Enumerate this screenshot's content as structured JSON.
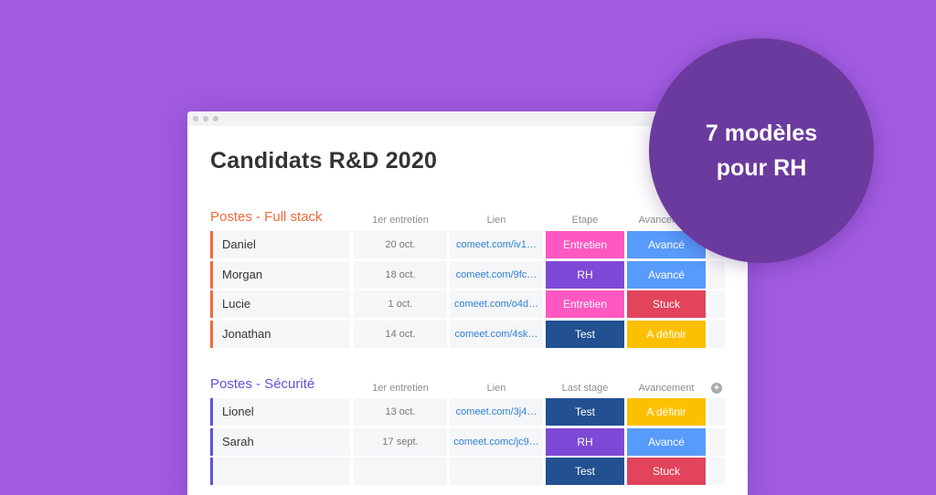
{
  "page_title": "Candidats R&D 2020",
  "badge": {
    "line1": "7 modèles",
    "line2": "pour RH"
  },
  "colors": {
    "background": "#a15be0",
    "badge": "#6b3a9e",
    "full_stack_accent": "#f06a3c",
    "securite_accent": "#5f55d6",
    "entretien": "#ff58c0",
    "rh": "#7e49d6",
    "test": "#225091",
    "avance": "#579bfc",
    "stuck": "#e2445c",
    "a_definir": "#fdc000"
  },
  "groups": [
    {
      "title": "Postes - Full stack",
      "headers": {
        "date": "1er entretien",
        "link": "Lien",
        "stage": "Etape",
        "status": "Avancement"
      },
      "rows": [
        {
          "name": "Daniel",
          "date": "20 oct.",
          "link": "comeet.com/iv1…",
          "stage": "Entretien",
          "status": "Avancé"
        },
        {
          "name": "Morgan",
          "date": "18 oct.",
          "link": "comeet.com/9fc…",
          "stage": "RH",
          "status": "Avancé"
        },
        {
          "name": "Lucie",
          "date": "1 oct.",
          "link": "comeet.com/o4d…",
          "stage": "Entretien",
          "status": "Stuck"
        },
        {
          "name": "Jonathan",
          "date": "14 oct.",
          "link": "comeet.com/4sk…",
          "stage": "Test",
          "status": "A définir"
        }
      ]
    },
    {
      "title": "Postes - Sécurité",
      "headers": {
        "date": "1er entretien",
        "link": "Lien",
        "stage": "Last stage",
        "status": "Avancement"
      },
      "rows": [
        {
          "name": "Lionel",
          "date": "13 oct.",
          "link": "comeet.com/3j4…",
          "stage": "Test",
          "status": "A définir"
        },
        {
          "name": "Sarah",
          "date": "17 sept.",
          "link": "comeet.comc/jc9…",
          "stage": "RH",
          "status": "Avancé"
        },
        {
          "name": "",
          "date": "",
          "link": "",
          "stage": "Test",
          "status": "Stuck"
        }
      ]
    }
  ]
}
